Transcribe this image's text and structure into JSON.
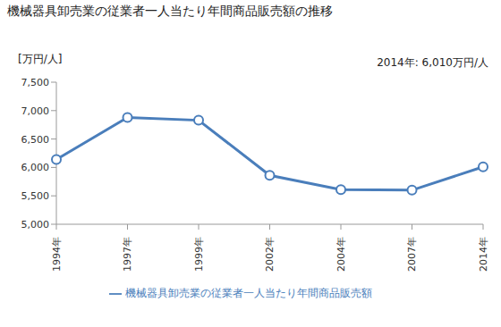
{
  "chart_data": {
    "type": "line",
    "title": "機械器具卸売業の従業者一人当たり年間商品販売額の推移",
    "y_label": "[万円/人]",
    "annotation": "2014年: 6,010万円/人",
    "categories": [
      "1994年",
      "1997年",
      "1999年",
      "2002年",
      "2004年",
      "2007年",
      "2014年"
    ],
    "series": [
      {
        "name": "機械器具卸売業の従業者一人当たり年間商品販売額",
        "color": "#4a7ebb",
        "values": [
          6140,
          6880,
          6830,
          5860,
          5610,
          5600,
          6010
        ],
        "marker": "circle"
      }
    ],
    "ylim": [
      5000,
      7500
    ],
    "yticks": [
      {
        "value": 5000,
        "label": "5,000"
      },
      {
        "value": 5500,
        "label": "5,500"
      },
      {
        "value": 6000,
        "label": "6,000"
      },
      {
        "value": 6500,
        "label": "6,500"
      },
      {
        "value": 7000,
        "label": "7,000"
      },
      {
        "value": 7500,
        "label": "7,500"
      }
    ],
    "grid": false,
    "legend": "bottom"
  }
}
